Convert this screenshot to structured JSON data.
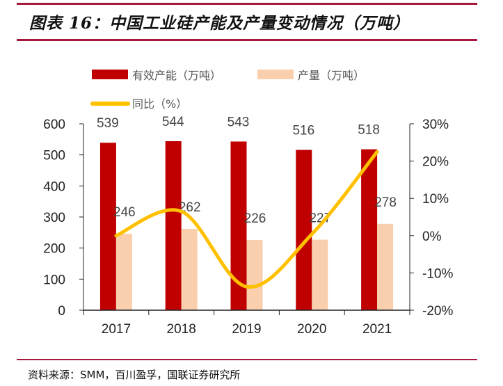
{
  "title": "图表 16：中国工业硅产能及产量变动情况（万吨）",
  "source": "资料来源：SMM，百川盈孚，国联证券研究所",
  "chart_data": {
    "type": "bar+line",
    "categories": [
      "2017",
      "2018",
      "2019",
      "2020",
      "2021"
    ],
    "series": [
      {
        "name": "有效产能（万吨）",
        "type": "bar",
        "axis": "left",
        "color": "#c00000",
        "values": [
          539,
          544,
          543,
          516,
          518
        ]
      },
      {
        "name": "产量（万吨）",
        "type": "bar",
        "axis": "left",
        "color": "#f9cfad",
        "values": [
          246,
          262,
          226,
          227,
          278
        ]
      },
      {
        "name": "同比（%）",
        "type": "line",
        "axis": "right",
        "color": "#ffc000",
        "values": [
          0,
          6.5,
          -13.7,
          0.4,
          22.5
        ]
      }
    ],
    "left_axis": {
      "ylim": [
        0,
        600
      ],
      "ticks": [
        "0",
        "100",
        "200",
        "300",
        "400",
        "500",
        "600"
      ]
    },
    "right_axis": {
      "ylim": [
        -20,
        30
      ],
      "ticks": [
        "-20%",
        "-10%",
        "0%",
        "10%",
        "20%",
        "30%"
      ]
    },
    "legend_position": "top",
    "grid": false
  }
}
